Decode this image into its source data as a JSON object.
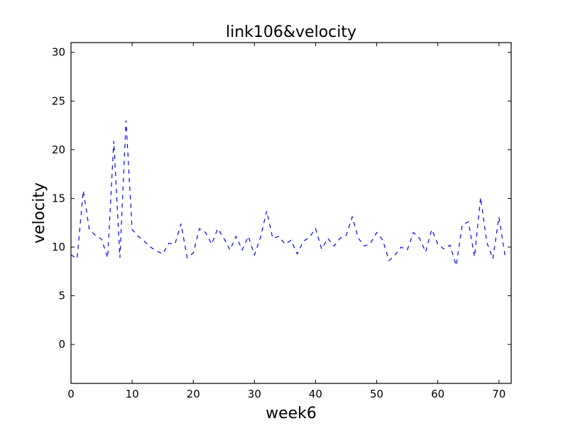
{
  "chart_data": {
    "type": "line",
    "title": "link106&velocity",
    "xlabel": "week6",
    "ylabel": "velocity",
    "xlim": [
      0,
      72
    ],
    "ylim": [
      -4,
      31
    ],
    "xticks": [
      0,
      10,
      20,
      30,
      40,
      50,
      60,
      70
    ],
    "yticks": [
      0,
      5,
      10,
      15,
      20,
      25,
      30
    ],
    "grid": false,
    "line_style": "dashed",
    "series": [
      {
        "color": "#0000ff",
        "x": [
          0,
          1,
          2,
          3,
          4,
          5,
          6,
          7,
          8,
          9,
          10,
          11,
          12,
          13,
          14,
          15,
          16,
          17,
          18,
          19,
          20,
          21,
          22,
          23,
          24,
          25,
          26,
          27,
          28,
          29,
          30,
          31,
          32,
          33,
          34,
          35,
          36,
          37,
          38,
          39,
          40,
          41,
          42,
          43,
          44,
          45,
          46,
          47,
          48,
          49,
          50,
          51,
          52,
          53,
          54,
          55,
          56,
          57,
          58,
          59,
          60,
          61,
          62,
          63,
          64,
          65,
          66,
          67,
          68,
          69,
          70,
          71
        ],
        "values": [
          9.2,
          8.8,
          15.8,
          11.8,
          11.2,
          10.8,
          8.9,
          20.9,
          8.9,
          23.0,
          11.8,
          11.1,
          10.6,
          10.0,
          9.6,
          9.3,
          10.4,
          10.3,
          12.4,
          8.9,
          9.4,
          11.9,
          11.5,
          10.3,
          11.9,
          10.9,
          9.7,
          11.1,
          9.7,
          11.1,
          9.2,
          11.0,
          13.7,
          10.9,
          11.1,
          10.3,
          10.7,
          9.3,
          10.6,
          11.0,
          11.9,
          9.8,
          10.9,
          10.1,
          10.9,
          11.2,
          13.1,
          10.9,
          10.1,
          10.4,
          11.5,
          10.7,
          8.6,
          9.2,
          10.0,
          9.7,
          11.5,
          10.9,
          9.5,
          11.8,
          10.3,
          9.8,
          10.2,
          8.1,
          12.3,
          12.6,
          9.0,
          15.1,
          10.5,
          8.8,
          13.1,
          9.1
        ]
      }
    ]
  }
}
